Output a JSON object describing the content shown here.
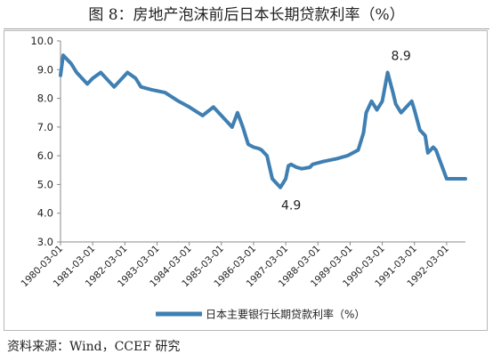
{
  "page": {
    "title": "图 8：房地产泡沫前后日本长期贷款利率（%）",
    "source": "资料来源：Wind，CCEF 研究"
  },
  "chart_data": {
    "type": "line",
    "title": "",
    "xlabel": "",
    "ylabel": "",
    "ylim": [
      3.0,
      10.0
    ],
    "yticks": [
      "3.0",
      "4.0",
      "5.0",
      "6.0",
      "7.0",
      "8.0",
      "9.0",
      "10.0"
    ],
    "xticks": [
      "1980-03-01",
      "1981-03-01",
      "1982-03-01",
      "1983-03-01",
      "1984-03-01",
      "1985-03-01",
      "1986-03-01",
      "1987-03-01",
      "1988-03-01",
      "1989-03-01",
      "1990-03-01",
      "1991-03-01",
      "1992-03-01"
    ],
    "grid": false,
    "legend": "bottom-center",
    "color": "#3f7fb2",
    "annotations": [
      {
        "label": "8.9",
        "x": "1990-10",
        "y": 8.9
      },
      {
        "label": "4.9",
        "x": "1987-05",
        "y": 4.9
      }
    ],
    "series": [
      {
        "name": "日本主要银行长期贷款利率（%）",
        "x": [
          "1980-03",
          "1980-04",
          "1980-07",
          "1980-09",
          "1981-01",
          "1981-03",
          "1981-06",
          "1981-09",
          "1981-11",
          "1982-01",
          "1982-04",
          "1982-07",
          "1982-09",
          "1983-01",
          "1983-06",
          "1983-11",
          "1984-03",
          "1984-08",
          "1984-12",
          "1985-02",
          "1985-04",
          "1985-07",
          "1985-09",
          "1985-11",
          "1986-01",
          "1986-03",
          "1986-05",
          "1986-06",
          "1986-08",
          "1986-10",
          "1987-01",
          "1987-03",
          "1987-04",
          "1987-05",
          "1987-07",
          "1987-09",
          "1987-12",
          "1988-01",
          "1988-05",
          "1988-10",
          "1989-02",
          "1989-06",
          "1989-08",
          "1989-09",
          "1989-11",
          "1990-01",
          "1990-03",
          "1990-05",
          "1990-07",
          "1990-08",
          "1990-10",
          "1990-12",
          "1991-02",
          "1991-03",
          "1991-05",
          "1991-07",
          "1991-08",
          "1991-10",
          "1991-11",
          "1992-01",
          "1992-03",
          "1992-05",
          "1992-07",
          "1992-10"
        ],
        "values": [
          8.8,
          9.5,
          9.2,
          8.9,
          8.5,
          8.7,
          8.9,
          8.6,
          8.4,
          8.6,
          8.9,
          8.7,
          8.4,
          8.3,
          8.2,
          7.9,
          7.7,
          7.4,
          7.7,
          7.5,
          7.3,
          7.0,
          7.5,
          7.0,
          6.4,
          6.3,
          6.25,
          6.2,
          6.0,
          5.2,
          4.9,
          5.2,
          5.65,
          5.7,
          5.6,
          5.55,
          5.6,
          5.7,
          5.8,
          5.9,
          6.0,
          6.2,
          6.8,
          7.5,
          7.9,
          7.6,
          7.9,
          8.9,
          8.2,
          7.8,
          7.5,
          7.7,
          7.9,
          7.6,
          6.9,
          6.7,
          6.1,
          6.3,
          6.2,
          5.7,
          5.2,
          5.2,
          5.2,
          5.2
        ]
      }
    ]
  }
}
